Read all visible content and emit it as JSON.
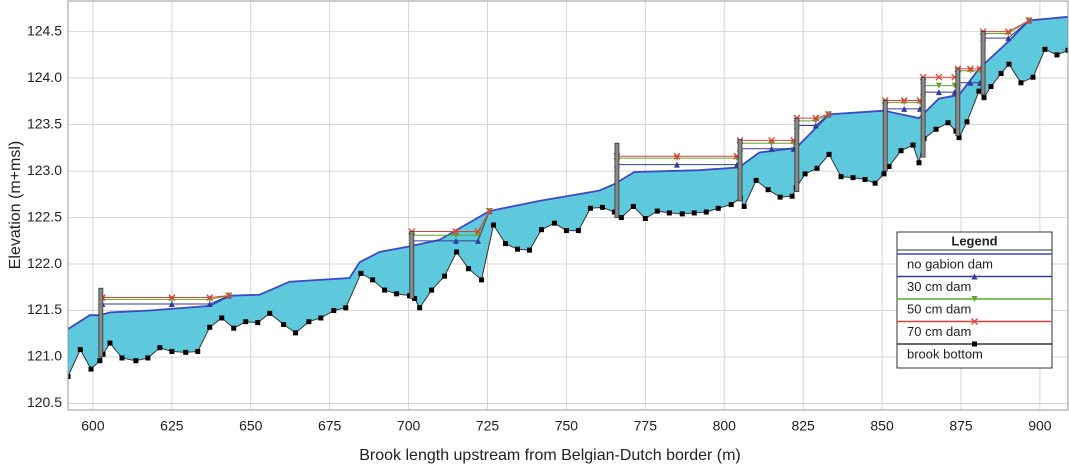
{
  "chart_data": {
    "type": "line",
    "xlabel": "Brook length upstream from Belgian-Dutch border (m)",
    "ylabel": "Elevation (m+msl)",
    "xlim": [
      592.1,
      908.9
    ],
    "ylim": [
      120.43,
      124.83
    ],
    "xticks": [
      600,
      625,
      650,
      675,
      700,
      725,
      750,
      775,
      800,
      825,
      850,
      875,
      900
    ],
    "yticks": [
      120.5,
      {
        "value": 121,
        "label": "121.0"
      },
      121.5,
      {
        "value": 122,
        "label": "122.0"
      },
      122.5,
      {
        "value": 123,
        "label": "123.0"
      },
      123.5,
      {
        "value": 124,
        "label": "124.0"
      },
      124.5
    ],
    "grid": true,
    "fill_color": "#5ec9dc",
    "legend": {
      "title": "Legend",
      "position": "lower right"
    },
    "series": [
      {
        "name": "no gabion dam",
        "color": "#3b49c4",
        "marker": "none",
        "x": [
          592.1,
          599,
          602.2,
          605.4,
          618,
          637,
          643.4,
          652.8,
          662.3,
          681.3,
          684.5,
          690.8,
          700.3,
          709.8,
          725.6,
          741.5,
          760.4,
          765.2,
          771.5,
          792.1,
          804.7,
          811.1,
          822.8,
          833.2,
          850.6,
          861.7,
          868,
          874.4,
          880.7,
          890.2,
          896.5,
          908.9
        ],
        "values": [
          121.3,
          121.45,
          121.45,
          121.48,
          121.5,
          121.55,
          121.66,
          121.67,
          121.81,
          121.85,
          122.02,
          122.13,
          122.19,
          122.26,
          122.57,
          122.68,
          122.79,
          122.86,
          122.99,
          123.01,
          123.04,
          123.2,
          123.25,
          123.61,
          123.65,
          123.57,
          123.78,
          123.82,
          124.1,
          124.4,
          124.62,
          124.66
        ]
      },
      {
        "name": "30 cm dam",
        "color": "#2e3e9a",
        "marker": "triangle-up",
        "x": [
          603,
          625,
          637,
          643,
          null,
          701,
          715,
          722,
          725.6,
          null,
          766,
          785,
          804,
          null,
          805,
          815,
          822,
          null,
          823,
          829,
          833,
          null,
          851,
          857,
          862,
          null,
          863,
          868,
          873,
          null,
          874,
          878,
          881,
          null,
          882,
          890,
          896.5
        ],
        "values": [
          121.57,
          121.57,
          121.57,
          121.66,
          null,
          122.25,
          122.25,
          122.25,
          122.57,
          null,
          123.07,
          123.07,
          123.07,
          null,
          123.24,
          123.24,
          123.24,
          null,
          123.49,
          123.49,
          123.61,
          null,
          123.67,
          123.67,
          123.67,
          null,
          123.85,
          123.85,
          123.85,
          null,
          123.95,
          123.95,
          123.95,
          null,
          124.43,
          124.43,
          124.62
        ]
      },
      {
        "name": "50 cm dam",
        "color": "#5aaa2a",
        "marker": "triangle-down",
        "x": [
          603,
          625,
          637,
          643,
          null,
          701,
          715,
          722,
          725.6,
          null,
          766,
          785,
          804,
          null,
          805,
          815,
          822,
          null,
          823,
          829,
          833,
          null,
          851,
          857,
          862,
          null,
          863,
          868,
          873,
          null,
          874,
          878,
          881,
          null,
          882,
          890,
          896.5
        ],
        "values": [
          121.62,
          121.62,
          121.62,
          121.66,
          null,
          122.31,
          122.31,
          122.31,
          122.57,
          null,
          123.14,
          123.14,
          123.14,
          null,
          123.3,
          123.3,
          123.3,
          null,
          123.54,
          123.54,
          123.61,
          null,
          123.74,
          123.74,
          123.74,
          null,
          123.92,
          123.92,
          123.92,
          null,
          124.08,
          124.08,
          124.08,
          null,
          124.48,
          124.48,
          124.62
        ]
      },
      {
        "name": "70 cm dam",
        "color": "#e0403a",
        "marker": "x",
        "x": [
          603,
          625,
          637,
          643,
          null,
          701,
          715,
          722,
          725.6,
          null,
          766,
          785,
          804,
          null,
          805,
          815,
          822,
          null,
          823,
          829,
          833,
          null,
          851,
          857,
          862,
          null,
          863,
          868,
          873,
          null,
          874,
          878,
          881,
          null,
          882,
          890,
          896.5
        ],
        "values": [
          121.64,
          121.64,
          121.64,
          121.66,
          null,
          122.35,
          122.35,
          122.35,
          122.57,
          null,
          123.16,
          123.16,
          123.16,
          null,
          123.33,
          123.33,
          123.33,
          null,
          123.57,
          123.57,
          123.61,
          null,
          123.76,
          123.76,
          123.76,
          null,
          124.01,
          124.01,
          124.01,
          null,
          124.1,
          124.1,
          124.1,
          null,
          124.5,
          124.5,
          124.62
        ]
      },
      {
        "name": "brook bottom",
        "color": "#333333",
        "marker": "square",
        "x": [
          592.1,
          596,
          599.4,
          602.2,
          603.2,
          605.4,
          609.2,
          613.6,
          617.4,
          621.2,
          625,
          629.4,
          633.2,
          637,
          640.8,
          644.6,
          648.4,
          652.2,
          656,
          660.4,
          664.2,
          668.4,
          672.2,
          676.3,
          680.1,
          684.9,
          688.6,
          692.4,
          696.2,
          700.3,
          701.9,
          703.5,
          707.3,
          711.4,
          715.2,
          719,
          723.1,
          726.9,
          730.7,
          734.5,
          738.3,
          742.1,
          746.2,
          750,
          753.8,
          757.6,
          761.4,
          765.2,
          767.4,
          771.2,
          775,
          778.8,
          782.6,
          786.7,
          790.5,
          794.3,
          798.1,
          802.2,
          805.1,
          806.3,
          810.1,
          813.9,
          817.7,
          821.5,
          822.8,
          825.6,
          829.4,
          833.2,
          837,
          840.8,
          844.6,
          847.8,
          850.6,
          852.2,
          856,
          859.8,
          861.7,
          863.3,
          867.1,
          870.9,
          873.4,
          874.4,
          876.9,
          880.7,
          882.3,
          884.5,
          887.7,
          890.2,
          894,
          897.8,
          901.6,
          905.4,
          908.9
        ],
        "values": [
          120.79,
          121.08,
          120.87,
          120.96,
          121.03,
          121.15,
          120.99,
          120.96,
          120.99,
          121.1,
          121.06,
          121.05,
          121.06,
          121.32,
          121.42,
          121.31,
          121.38,
          121.37,
          121.47,
          121.35,
          121.26,
          121.38,
          121.42,
          121.5,
          121.53,
          121.9,
          121.83,
          121.72,
          121.68,
          121.66,
          121.63,
          121.53,
          121.72,
          121.87,
          122.13,
          121.95,
          121.83,
          122.42,
          122.22,
          122.16,
          122.15,
          122.37,
          122.44,
          122.36,
          122.36,
          122.6,
          122.61,
          122.56,
          122.5,
          122.62,
          122.49,
          122.57,
          122.55,
          122.54,
          122.55,
          122.56,
          122.6,
          122.64,
          122.71,
          122.62,
          122.9,
          122.8,
          122.72,
          122.73,
          122.82,
          122.97,
          123.03,
          123.18,
          122.94,
          122.93,
          122.91,
          122.87,
          122.97,
          123.05,
          123.22,
          123.28,
          123.09,
          123.35,
          123.45,
          123.52,
          123.43,
          123.36,
          123.53,
          123.86,
          123.79,
          123.91,
          124.05,
          124.15,
          123.95,
          124.01,
          124.31,
          124.25,
          124.3
        ]
      }
    ],
    "dams": {
      "x": [
        602.5,
        701,
        766,
        805,
        823,
        851,
        863,
        874,
        882
      ],
      "bottom": [
        121.0,
        121.63,
        122.5,
        122.68,
        122.78,
        123.0,
        123.15,
        123.38,
        123.82
      ],
      "top": [
        121.74,
        122.35,
        123.3,
        123.34,
        123.57,
        123.76,
        124.01,
        124.1,
        124.5
      ]
    }
  }
}
